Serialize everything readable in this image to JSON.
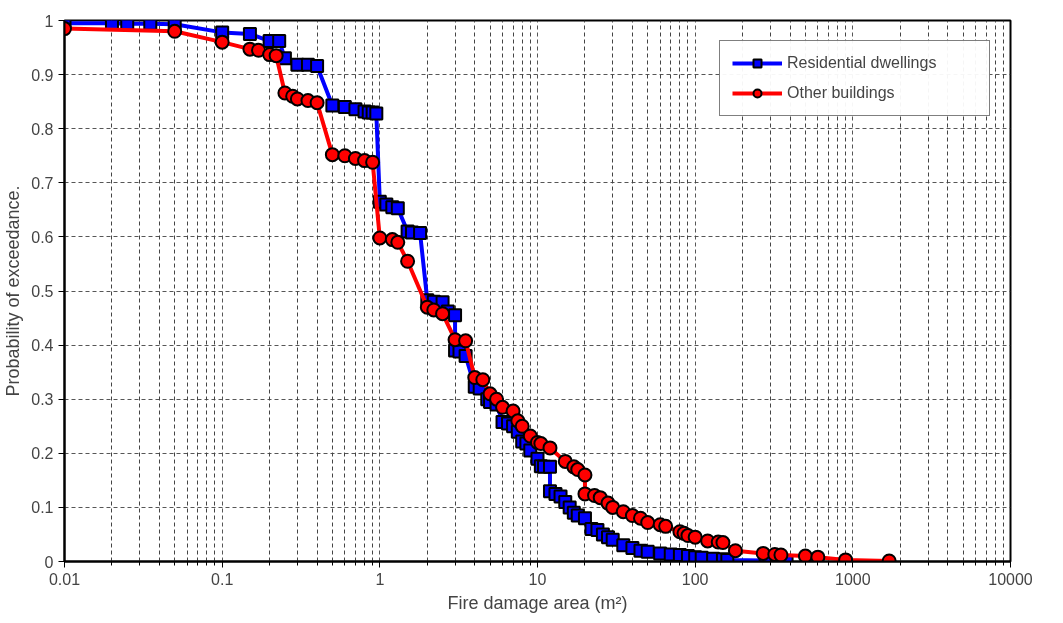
{
  "chart_data": {
    "type": "line",
    "xlabel": "Fire damage area (m²)",
    "ylabel": "Probability of exceedance.",
    "log": "x",
    "xlim": [
      0.01,
      10000
    ],
    "xticks": [
      0.01,
      0.1,
      1,
      10,
      100,
      1000,
      10000
    ],
    "ylim": [
      0,
      1
    ],
    "yticks": [
      0,
      0.1,
      0.2,
      0.3,
      0.4,
      0.5,
      0.6,
      0.7,
      0.8,
      0.9,
      1
    ],
    "grid": true,
    "legend": "top right",
    "line_style": "solid",
    "series": [
      {
        "name": "Residential dwellings",
        "color": "#0000ff",
        "marker": "square",
        "x": [
          0.01,
          0.02,
          0.025,
          0.035,
          0.05,
          0.1,
          0.15,
          0.2,
          0.23,
          0.25,
          0.3,
          0.35,
          0.4,
          0.5,
          0.6,
          0.7,
          0.8,
          0.85,
          0.9,
          0.95,
          1.0,
          1.1,
          1.2,
          1.3,
          1.5,
          1.6,
          1.8,
          2.0,
          2.2,
          2.5,
          2.7,
          3.0,
          3.0,
          3.2,
          3.5,
          4.0,
          4.3,
          4.8,
          5.0,
          5.5,
          6,
          6.5,
          7,
          7.5,
          8,
          8.5,
          9,
          10,
          10.5,
          11,
          12,
          12,
          13,
          14,
          15,
          16,
          17,
          18,
          20,
          22,
          24,
          26,
          28,
          30,
          35,
          40,
          45,
          50,
          60,
          70,
          80,
          90,
          100,
          110,
          130,
          150,
          160,
          280,
          330,
          380
        ],
        "values": [
          0.995,
          0.995,
          0.994,
          0.994,
          0.993,
          0.978,
          0.975,
          0.962,
          0.962,
          0.93,
          0.918,
          0.918,
          0.916,
          0.843,
          0.84,
          0.836,
          0.832,
          0.83,
          0.83,
          0.828,
          0.665,
          0.66,
          0.655,
          0.653,
          0.61,
          0.608,
          0.607,
          0.483,
          0.48,
          0.479,
          0.462,
          0.455,
          0.39,
          0.388,
          0.38,
          0.323,
          0.32,
          0.3,
          0.295,
          0.29,
          0.258,
          0.255,
          0.25,
          0.24,
          0.222,
          0.218,
          0.205,
          0.19,
          0.176,
          0.175,
          0.175,
          0.13,
          0.125,
          0.12,
          0.11,
          0.1,
          0.09,
          0.085,
          0.08,
          0.06,
          0.058,
          0.05,
          0.045,
          0.04,
          0.03,
          0.025,
          0.02,
          0.018,
          0.015,
          0.013,
          0.012,
          0.01,
          0.008,
          0.007,
          0.005,
          0.004,
          0.003,
          0.002,
          0.002,
          0.001
        ]
      },
      {
        "name": "Other buildings",
        "color": "#ff0000",
        "marker": "circle",
        "x": [
          0.01,
          0.05,
          0.1,
          0.15,
          0.17,
          0.2,
          0.22,
          0.25,
          0.28,
          0.3,
          0.35,
          0.4,
          0.5,
          0.6,
          0.7,
          0.8,
          0.9,
          1.0,
          1.2,
          1.3,
          1.5,
          2.0,
          2.2,
          2.5,
          3.0,
          3.5,
          4.0,
          4.5,
          5,
          5.5,
          6,
          7,
          7.5,
          8,
          9,
          10,
          10.5,
          12,
          15,
          17,
          18,
          20,
          20,
          23,
          25,
          28,
          30,
          35,
          40,
          45,
          50,
          60,
          65,
          80,
          85,
          90,
          100,
          120,
          140,
          150,
          180,
          270,
          320,
          350,
          500,
          600,
          900,
          1700
        ],
        "values": [
          0.985,
          0.98,
          0.96,
          0.947,
          0.945,
          0.937,
          0.935,
          0.866,
          0.86,
          0.855,
          0.852,
          0.848,
          0.752,
          0.75,
          0.745,
          0.741,
          0.738,
          0.598,
          0.595,
          0.59,
          0.555,
          0.47,
          0.465,
          0.458,
          0.41,
          0.408,
          0.34,
          0.336,
          0.31,
          0.3,
          0.285,
          0.278,
          0.26,
          0.25,
          0.232,
          0.22,
          0.218,
          0.21,
          0.185,
          0.175,
          0.17,
          0.16,
          0.125,
          0.122,
          0.118,
          0.108,
          0.1,
          0.092,
          0.085,
          0.08,
          0.072,
          0.068,
          0.065,
          0.055,
          0.052,
          0.048,
          0.045,
          0.038,
          0.036,
          0.035,
          0.02,
          0.015,
          0.013,
          0.012,
          0.01,
          0.008,
          0.003,
          0.001
        ]
      }
    ]
  }
}
